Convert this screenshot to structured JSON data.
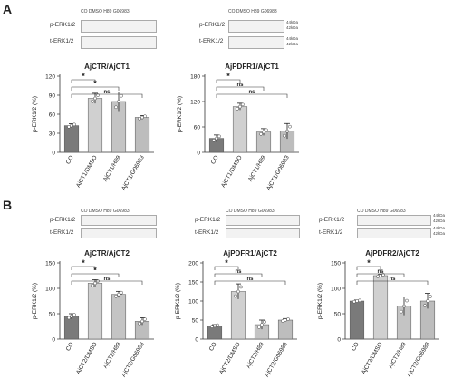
{
  "panels": [
    {
      "letter": "A"
    },
    {
      "letter": "B"
    }
  ],
  "blot_labels": {
    "p": "p-ERK1/2",
    "t": "t-ERK1/2"
  },
  "lane_headers": {
    "a1": "CO  DMSO  H89  G06983",
    "a2": "CO  DMSO  H89  G06983",
    "b1": "CO  DMSO  H89  G06983",
    "b2": "CO  DMSO  H89  G06983",
    "b3": "CO  DMSO  H89  G06983"
  },
  "kda_markers": [
    "44kDa",
    "42kDa",
    "44kDa",
    "42kDa"
  ],
  "colors": {
    "bar1": "#7a7a7a",
    "bar2": "#d0d0d0",
    "bar3": "#c4c4c4",
    "bar4": "#bdbdbd"
  },
  "chart_data": [
    {
      "type": "bar",
      "title": "AjCTR/AjCT1",
      "ylabel": "p-ERK1/2 (%)",
      "ylim": [
        0,
        120
      ],
      "yticks": [
        0,
        30,
        60,
        90,
        120
      ],
      "categories": [
        "CO",
        "AjCT1/DMSO",
        "AjCT1/H89",
        "AjCT1/G06983"
      ],
      "values": [
        42,
        85,
        80,
        55
      ],
      "errors": [
        3,
        8,
        15,
        3
      ],
      "sig": [
        {
          "from": 0,
          "to": 1,
          "label": "*"
        },
        {
          "from": 0,
          "to": 2,
          "label": "*"
        },
        {
          "from": 0,
          "to": 3,
          "label": "ns"
        }
      ]
    },
    {
      "type": "bar",
      "title": "AjPDFR1/AjCT1",
      "ylabel": "p-ERK1/2 (%)",
      "ylim": [
        0,
        180
      ],
      "yticks": [
        0,
        60,
        120,
        180
      ],
      "categories": [
        "CO",
        "AjCT1/DMSO",
        "AjCT1/H89",
        "AjCT1/G06983"
      ],
      "values": [
        33,
        108,
        48,
        50
      ],
      "errors": [
        8,
        8,
        8,
        18
      ],
      "sig": [
        {
          "from": 0,
          "to": 1,
          "label": "*"
        },
        {
          "from": 0,
          "to": 2,
          "label": "ns"
        },
        {
          "from": 0,
          "to": 3,
          "label": "ns"
        }
      ]
    },
    {
      "type": "bar",
      "title": "AjCTR/AjCT2",
      "ylabel": "p-ERK1/2 (%)",
      "ylim": [
        0,
        150
      ],
      "yticks": [
        0,
        50,
        100,
        150
      ],
      "categories": [
        "CO",
        "AjCT2/DMSO",
        "AjCT2/H89",
        "AjCT2/G06983"
      ],
      "values": [
        45,
        110,
        88,
        35
      ],
      "errors": [
        5,
        7,
        6,
        7
      ],
      "sig": [
        {
          "from": 0,
          "to": 1,
          "label": "*"
        },
        {
          "from": 0,
          "to": 2,
          "label": "*"
        },
        {
          "from": 0,
          "to": 3,
          "label": "ns"
        }
      ]
    },
    {
      "type": "bar",
      "title": "AjPDFR1/AjCT2",
      "ylabel": "p-ERK1/2 (%)",
      "ylim": [
        0,
        200
      ],
      "yticks": [
        0,
        50,
        100,
        150,
        200
      ],
      "categories": [
        "CO",
        "AjCT2/DMSO",
        "AjCT2/H89",
        "AjCT2/G06983"
      ],
      "values": [
        35,
        125,
        38,
        50
      ],
      "errors": [
        3,
        20,
        12,
        4
      ],
      "sig": [
        {
          "from": 0,
          "to": 1,
          "label": "*"
        },
        {
          "from": 0,
          "to": 2,
          "label": "ns"
        },
        {
          "from": 0,
          "to": 3,
          "label": "ns"
        }
      ]
    },
    {
      "type": "bar",
      "title": "AjPDFR2/AjCT2",
      "ylabel": "p-ERK1/2 (%)",
      "ylim": [
        0,
        150
      ],
      "yticks": [
        0,
        50,
        100,
        150
      ],
      "categories": [
        "CO",
        "AjCT2/DMSO",
        "AjCT2/H89",
        "AjCT2/G06983"
      ],
      "values": [
        75,
        125,
        65,
        75
      ],
      "errors": [
        2,
        3,
        18,
        15
      ],
      "sig": [
        {
          "from": 0,
          "to": 1,
          "label": "*"
        },
        {
          "from": 0,
          "to": 2,
          "label": "ns"
        },
        {
          "from": 0,
          "to": 3,
          "label": "ns"
        }
      ]
    }
  ]
}
